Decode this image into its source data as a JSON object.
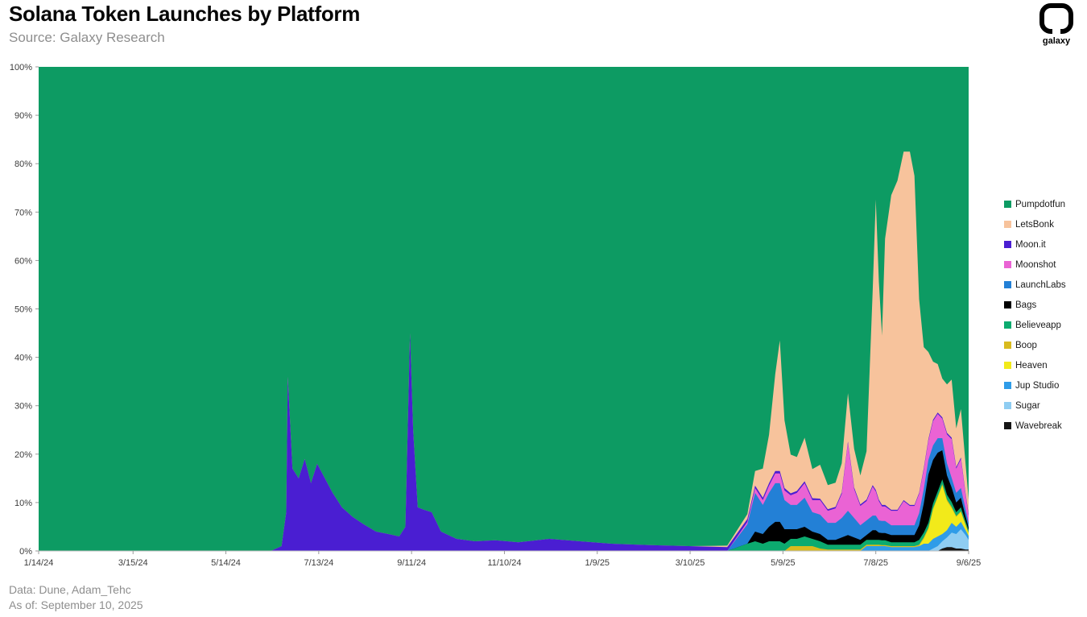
{
  "page": {
    "title": "Solana Token Launches by Platform",
    "source": "Source: Galaxy Research",
    "logo_text": "galaxy",
    "footer_line1": "Data: Dune, Adam_Tehc",
    "footer_line2": "As of: September 10, 2025"
  },
  "chart_data": {
    "type": "area",
    "stacked": true,
    "units": "percent_share",
    "title": "Solana Token Launches by Platform",
    "legend_position": "right",
    "grid": false,
    "x_axis": {
      "epoch_label": "days since 1/14/24",
      "tick_days": [
        0,
        61,
        121,
        181,
        241,
        301,
        361,
        421,
        481,
        541,
        601
      ],
      "tick_labels": [
        "1/14/24",
        "3/15/24",
        "5/14/24",
        "7/13/24",
        "9/11/24",
        "11/10/24",
        "1/9/25",
        "3/10/25",
        "5/9/25",
        "7/8/25",
        "9/6/25"
      ]
    },
    "y_axis": {
      "min": 0,
      "max": 100,
      "tick_labels": [
        "0%",
        "10%",
        "20%",
        "30%",
        "40%",
        "50%",
        "60%",
        "70%",
        "80%",
        "90%",
        "100%"
      ]
    },
    "x_days": [
      0,
      60,
      120,
      150,
      157,
      160,
      161,
      164,
      168,
      172,
      176,
      180,
      185,
      190,
      196,
      203,
      210,
      218,
      226,
      233,
      237,
      240,
      242,
      245,
      249,
      254,
      260,
      270,
      282,
      295,
      310,
      330,
      350,
      370,
      395,
      420,
      445,
      458,
      463,
      468,
      472,
      476,
      479,
      482,
      486,
      490,
      495,
      500,
      505,
      510,
      515,
      519,
      523,
      527,
      531,
      535,
      539,
      541,
      543,
      545,
      547,
      551,
      555,
      559,
      563,
      566,
      569,
      572,
      575,
      578,
      581,
      584,
      587,
      590,
      593,
      596,
      599,
      601
    ],
    "stack_order_bottom_to_top": [
      "Wavebreak",
      "Sugar",
      "Jup Studio",
      "Heaven",
      "Boop",
      "Believeapp",
      "Bags",
      "LaunchLabs",
      "Moonshot",
      "Moon.it",
      "LetsBonk",
      "Pumpdotfun"
    ],
    "series": [
      {
        "name": "Pumpdotfun",
        "color": "#0d9b63",
        "values": "remainder"
      },
      {
        "name": "LetsBonk",
        "color": "#f7c39c",
        "values": [
          0,
          0,
          0,
          0,
          0,
          0,
          0,
          0,
          0,
          0,
          0,
          0,
          0,
          0,
          0,
          0,
          0,
          0,
          0,
          0,
          0,
          0,
          0,
          0,
          0,
          0,
          0,
          0,
          0,
          0,
          0,
          0,
          0,
          0,
          0,
          0,
          0.3,
          1,
          3,
          6,
          10,
          20,
          27,
          14,
          8,
          7,
          9,
          6,
          7,
          5,
          5,
          6,
          10,
          8,
          6,
          10,
          40,
          60,
          45,
          35,
          55,
          65,
          68,
          72,
          73,
          68,
          40,
          25,
          18,
          12,
          10,
          8,
          10,
          12,
          8,
          10,
          6,
          3
        ]
      },
      {
        "name": "Moon.it",
        "color": "#4a1ed2",
        "values": [
          0,
          0,
          0,
          0,
          1,
          8,
          36,
          17,
          15,
          19,
          14,
          18,
          15,
          12,
          9,
          7,
          5.5,
          4,
          3.5,
          3,
          5,
          45,
          25,
          9,
          8.5,
          8,
          4,
          2.5,
          2,
          2.2,
          1.8,
          2.5,
          2,
          1.5,
          1.2,
          1,
          0.8,
          0.6,
          0.5,
          0.5,
          0.5,
          0.5,
          0.5,
          0.5,
          0.4,
          0.4,
          0.4,
          0.4,
          0.3,
          0.3,
          0.3,
          0.3,
          0.3,
          0.3,
          0.3,
          0.3,
          0.3,
          0.3,
          0.3,
          0.3,
          0.3,
          0.2,
          0.2,
          0.2,
          0.2,
          0.2,
          0.2,
          0.3,
          0.3,
          0.3,
          0.3,
          0.3,
          0.3,
          0.3,
          0.3,
          0.3,
          0.3,
          0.3
        ]
      },
      {
        "name": "Moonshot",
        "color": "#ea63d4",
        "values": [
          0,
          0,
          0,
          0,
          0,
          0,
          0,
          0,
          0,
          0,
          0,
          0,
          0,
          0,
          0,
          0,
          0,
          0,
          0,
          0,
          0,
          0,
          0,
          0,
          0,
          0,
          0,
          0,
          0,
          0,
          0,
          0,
          0,
          0,
          0,
          0,
          0,
          0.5,
          1,
          1,
          1.5,
          2,
          2,
          2,
          2,
          2.5,
          3,
          2.5,
          3,
          2.5,
          3,
          5,
          14,
          6,
          4,
          4,
          6,
          5,
          4,
          3,
          3,
          3,
          3,
          5,
          4,
          4,
          4,
          4,
          4,
          5,
          5,
          4,
          6,
          8,
          5,
          6,
          3,
          1.5
        ]
      },
      {
        "name": "LaunchLabs",
        "color": "#2380d6",
        "values": [
          0,
          0,
          0,
          0,
          0,
          0,
          0,
          0,
          0,
          0,
          0,
          0,
          0,
          0,
          0,
          0,
          0,
          0,
          0,
          0,
          0,
          0,
          0,
          0,
          0,
          0,
          0,
          0,
          0,
          0,
          0,
          0,
          0,
          0,
          0,
          0,
          0,
          4,
          8,
          6,
          7,
          8,
          8,
          6,
          5,
          5,
          6,
          4,
          4,
          3.5,
          3.5,
          4,
          5,
          4,
          3,
          3,
          3,
          3,
          2.5,
          2.5,
          2.5,
          2,
          2,
          2,
          2,
          2,
          2.5,
          3,
          3,
          3,
          3,
          2.5,
          2.5,
          2,
          2,
          2,
          1.5,
          1
        ]
      },
      {
        "name": "Bags",
        "color": "#000000",
        "values": [
          0,
          0,
          0,
          0,
          0,
          0,
          0,
          0,
          0,
          0,
          0,
          0,
          0,
          0,
          0,
          0,
          0,
          0,
          0,
          0,
          0,
          0,
          0,
          0,
          0,
          0,
          0,
          0,
          0,
          0,
          0,
          0,
          0,
          0,
          0,
          0,
          0,
          0,
          2,
          2,
          3,
          4,
          4,
          3,
          2,
          2,
          2,
          1.5,
          1.5,
          1,
          1,
          1.5,
          2,
          1.5,
          1,
          1,
          2,
          2,
          1.5,
          1.5,
          1.5,
          1.5,
          1.5,
          1.5,
          1.5,
          1.5,
          3,
          6,
          10,
          9,
          8,
          6,
          4,
          3,
          2,
          2,
          1,
          0.5
        ]
      },
      {
        "name": "Believeapp",
        "color": "#0cab6f",
        "values": [
          0,
          0,
          0,
          0,
          0,
          0,
          0,
          0,
          0,
          0,
          0,
          0,
          0,
          0,
          0,
          0,
          0,
          0,
          0,
          0,
          0,
          0,
          0,
          0,
          0,
          0,
          0,
          0,
          0,
          0,
          0,
          0,
          0,
          0,
          0,
          0,
          0,
          1.5,
          2,
          1.5,
          2,
          2,
          2,
          1.5,
          1.5,
          1.5,
          2,
          1.5,
          1.5,
          1,
          1,
          1,
          1,
          1,
          1,
          1,
          1,
          1,
          1,
          1,
          1,
          0.8,
          0.8,
          0.8,
          0.8,
          0.8,
          1,
          1,
          1,
          1,
          1,
          1,
          1,
          1,
          0.8,
          0.8,
          0.6,
          0.5
        ]
      },
      {
        "name": "Boop",
        "color": "#d9bb1e",
        "values": [
          0,
          0,
          0,
          0,
          0,
          0,
          0,
          0,
          0,
          0,
          0,
          0,
          0,
          0,
          0,
          0,
          0,
          0,
          0,
          0,
          0,
          0,
          0,
          0,
          0,
          0,
          0,
          0,
          0,
          0,
          0,
          0,
          0,
          0,
          0,
          0,
          0,
          0,
          0,
          0,
          0,
          0,
          0,
          0,
          1,
          1,
          1,
          1,
          0.5,
          0.3,
          0.3,
          0.3,
          0.3,
          0.3,
          0.3,
          0.3,
          0.3,
          0.3,
          0.3,
          0.2,
          0.2,
          0.2,
          0.2,
          0.2,
          0.2,
          0.2,
          0.3,
          0.3,
          0.3,
          0.3,
          0.3,
          0.3,
          0.3,
          0.3,
          0.2,
          0.2,
          0.2,
          0.2
        ]
      },
      {
        "name": "Heaven",
        "color": "#f2ea1a",
        "values": [
          0,
          0,
          0,
          0,
          0,
          0,
          0,
          0,
          0,
          0,
          0,
          0,
          0,
          0,
          0,
          0,
          0,
          0,
          0,
          0,
          0,
          0,
          0,
          0,
          0,
          0,
          0,
          0,
          0,
          0,
          0,
          0,
          0,
          0,
          0,
          0,
          0,
          0,
          0,
          0,
          0,
          0,
          0,
          0,
          0,
          0,
          0,
          0,
          0,
          0,
          0,
          0,
          0,
          0,
          0,
          0,
          0,
          0,
          0,
          0,
          0,
          0,
          0,
          0,
          0,
          0,
          0,
          1,
          3,
          6,
          8,
          10,
          6,
          3,
          2,
          2,
          1,
          0.5
        ]
      },
      {
        "name": "Jup Studio",
        "color": "#2f9ce8",
        "values": [
          0,
          0,
          0,
          0,
          0,
          0,
          0,
          0,
          0,
          0,
          0,
          0,
          0,
          0,
          0,
          0,
          0,
          0,
          0,
          0,
          0,
          0,
          0,
          0,
          0,
          0,
          0,
          0,
          0,
          0,
          0,
          0,
          0,
          0,
          0,
          0,
          0,
          0,
          0,
          0,
          0,
          0,
          0,
          0,
          0,
          0,
          0,
          0,
          0,
          0,
          0,
          0,
          0,
          0,
          0,
          1,
          1,
          1,
          1,
          1,
          1,
          0.8,
          0.8,
          0.8,
          0.8,
          0.8,
          1,
          1.5,
          1.5,
          2,
          2,
          1.5,
          1.5,
          2,
          1.5,
          1.5,
          1,
          0.8
        ]
      },
      {
        "name": "Sugar",
        "color": "#8fcdf2",
        "values": [
          0,
          0,
          0,
          0,
          0,
          0,
          0,
          0,
          0,
          0,
          0,
          0,
          0,
          0,
          0,
          0,
          0,
          0,
          0,
          0,
          0,
          0,
          0,
          0,
          0,
          0,
          0,
          0,
          0,
          0,
          0,
          0,
          0,
          0,
          0,
          0,
          0,
          0,
          0,
          0,
          0,
          0,
          0,
          0,
          0,
          0,
          0,
          0,
          0,
          0,
          0,
          0,
          0,
          0,
          0,
          0,
          0,
          0,
          0,
          0,
          0,
          0,
          0,
          0,
          0,
          0,
          0,
          0,
          0,
          0.5,
          1,
          1.5,
          2,
          3,
          3,
          4,
          3,
          2
        ]
      },
      {
        "name": "Wavebreak",
        "color": "#151515",
        "values": [
          0,
          0,
          0,
          0,
          0,
          0,
          0,
          0,
          0,
          0,
          0,
          0,
          0,
          0,
          0,
          0,
          0,
          0,
          0,
          0,
          0,
          0,
          0,
          0,
          0,
          0,
          0,
          0,
          0,
          0,
          0,
          0,
          0,
          0,
          0,
          0,
          0,
          0,
          0,
          0,
          0,
          0,
          0,
          0,
          0,
          0,
          0,
          0,
          0,
          0,
          0,
          0,
          0,
          0,
          0,
          0,
          0,
          0,
          0,
          0,
          0,
          0,
          0,
          0,
          0,
          0,
          0,
          0,
          0,
          0,
          0,
          0.5,
          0.8,
          0.8,
          0.5,
          0.5,
          0.3,
          0.3
        ]
      }
    ]
  }
}
